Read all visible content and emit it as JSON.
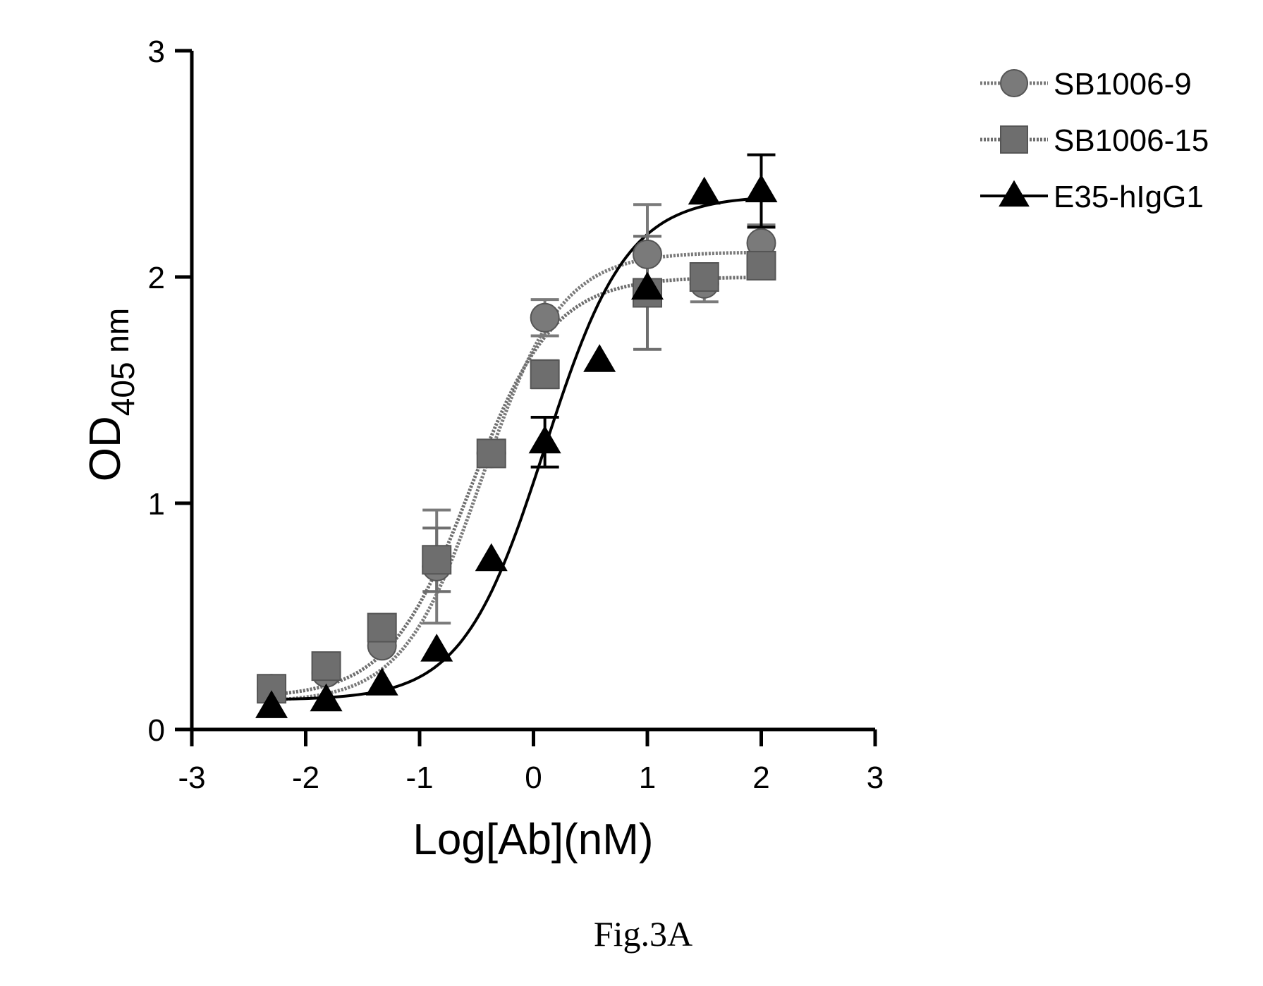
{
  "chart_data": {
    "type": "scatter",
    "xlabel": "Log[Ab](nM)",
    "ylabel_main": "OD",
    "ylabel_sub": "405",
    "ylabel_unit": "nm",
    "xlim": [
      -3,
      3
    ],
    "ylim": [
      0,
      3
    ],
    "xticks": [
      "-3",
      "-2",
      "-1",
      "0",
      "1",
      "2",
      "3"
    ],
    "yticks": [
      "0",
      "1",
      "2",
      "3"
    ],
    "grid": false,
    "legend_position": "top-right",
    "caption": "Fig.3A",
    "series": [
      {
        "name": "SB1006-9",
        "marker": "circle",
        "color": "#7a7a7a",
        "line_style": "dotted",
        "x": [
          -2.3,
          -1.82,
          -1.33,
          -0.85,
          -0.37,
          0.1,
          1.0,
          1.5,
          2.0
        ],
        "y": [
          0.18,
          0.25,
          0.37,
          0.72,
          1.22,
          1.82,
          2.1,
          1.97,
          2.15
        ],
        "err": [
          0.0,
          0.0,
          0.0,
          0.25,
          0.0,
          0.08,
          0.22,
          0.08,
          0.08
        ],
        "fit": {
          "bottom": 0.12,
          "top": 2.11,
          "logec50": -0.45,
          "hill": 1.25
        }
      },
      {
        "name": "SB1006-15",
        "marker": "square",
        "color": "#6e6e6e",
        "line_style": "dotted",
        "x": [
          -2.3,
          -1.82,
          -1.33,
          -0.85,
          -0.37,
          0.1,
          1.0,
          1.5,
          2.0
        ],
        "y": [
          0.18,
          0.28,
          0.45,
          0.75,
          1.22,
          1.57,
          1.93,
          2.0,
          2.05
        ],
        "err": [
          0.0,
          0.0,
          0.0,
          0.14,
          0.0,
          0.06,
          0.25,
          0.05,
          0.0
        ],
        "fit": {
          "bottom": 0.14,
          "top": 2.0,
          "logec50": -0.55,
          "hill": 1.2
        }
      },
      {
        "name": "E35-hIgG1",
        "marker": "triangle",
        "color": "#000000",
        "line_style": "solid",
        "x": [
          -2.3,
          -1.82,
          -1.33,
          -0.85,
          -0.37,
          0.1,
          0.58,
          1.0,
          1.5,
          2.0
        ],
        "y": [
          0.1,
          0.13,
          0.2,
          0.35,
          0.75,
          1.27,
          1.63,
          1.95,
          2.37,
          2.38
        ],
        "err": [
          0.0,
          0.0,
          0.0,
          0.0,
          0.0,
          0.11,
          0.0,
          0.0,
          0.0,
          0.16
        ],
        "fit": {
          "bottom": 0.13,
          "top": 2.36,
          "logec50": 0.1,
          "hill": 1.2
        }
      }
    ]
  }
}
